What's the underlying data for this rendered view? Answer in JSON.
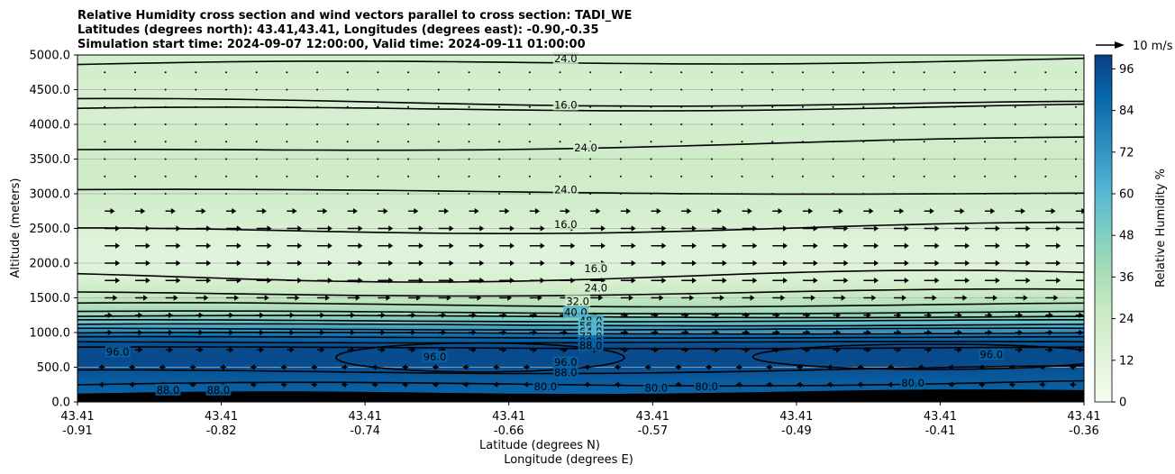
{
  "chart_data": {
    "type": "heatmap",
    "title_lines": [
      "Relative Humidity cross section and wind vectors parallel to cross section: TADI_WE",
      "Latitudes (degrees north): 43.41,43.41, Longitudes (degrees east): -0.90,-0.35",
      "Simulation start time: 2024-09-07 12:00:00, Valid time: 2024-09-11 01:00:00"
    ],
    "ylabel": "Altitude (meters)",
    "xlabel_line1": "Latitude (degrees N)",
    "xlabel_line2": "Longitude (degrees E)",
    "ylim": [
      0,
      5000
    ],
    "y_ticks": [
      0,
      500,
      1000,
      1500,
      2000,
      2500,
      3000,
      3500,
      4000,
      4500,
      5000
    ],
    "y_tick_labels": [
      "0.0",
      "500.0",
      "1000.0",
      "1500.0",
      "2000.0",
      "2500.0",
      "3000.0",
      "3500.0",
      "4000.0",
      "4500.0",
      "5000.0"
    ],
    "x_ticks": [
      {
        "lat": "43.41",
        "lon": "-0.91"
      },
      {
        "lat": "43.41",
        "lon": "-0.82"
      },
      {
        "lat": "43.41",
        "lon": "-0.74"
      },
      {
        "lat": "43.41",
        "lon": "-0.66"
      },
      {
        "lat": "43.41",
        "lon": "-0.57"
      },
      {
        "lat": "43.41",
        "lon": "-0.49"
      },
      {
        "lat": "43.41",
        "lon": "-0.41"
      },
      {
        "lat": "43.41",
        "lon": "-0.36"
      }
    ],
    "colorbar": {
      "label": "Relative Humidity %",
      "range": [
        0,
        100
      ],
      "ticks": [
        "0",
        "12",
        "24",
        "36",
        "48",
        "60",
        "72",
        "84",
        "96"
      ],
      "colors_low_to_high": [
        "#f7fcf0",
        "#e0f3db",
        "#ccebc5",
        "#a8ddb5",
        "#7bccc4",
        "#4eb3d3",
        "#2b8cbe",
        "#0868ac",
        "#084081"
      ]
    },
    "quiver_key": "10 m/s",
    "humidity_profile": [
      {
        "alt": 0,
        "rh": 88
      },
      {
        "alt": 200,
        "rh": 90
      },
      {
        "alt": 400,
        "rh": 93
      },
      {
        "alt": 600,
        "rh": 97
      },
      {
        "alt": 800,
        "rh": 96
      },
      {
        "alt": 950,
        "rh": 86
      },
      {
        "alt": 1050,
        "rh": 70
      },
      {
        "alt": 1150,
        "rh": 55
      },
      {
        "alt": 1250,
        "rh": 42
      },
      {
        "alt": 1400,
        "rh": 33
      },
      {
        "alt": 1600,
        "rh": 24
      },
      {
        "alt": 1800,
        "rh": 16
      },
      {
        "alt": 2000,
        "rh": 12
      },
      {
        "alt": 2300,
        "rh": 13
      },
      {
        "alt": 2600,
        "rh": 18
      },
      {
        "alt": 3000,
        "rh": 22
      },
      {
        "alt": 3400,
        "rh": 24
      },
      {
        "alt": 3800,
        "rh": 22
      },
      {
        "alt": 4200,
        "rh": 18
      },
      {
        "alt": 4600,
        "rh": 20
      },
      {
        "alt": 5000,
        "rh": 22
      }
    ],
    "contour_labels": [
      {
        "text": "24.0",
        "x_frac": 0.485,
        "alt": 4950
      },
      {
        "text": "16.0",
        "x_frac": 0.485,
        "alt": 4280
      },
      {
        "text": "24.0",
        "x_frac": 0.505,
        "alt": 3660
      },
      {
        "text": "24.0",
        "x_frac": 0.485,
        "alt": 3060
      },
      {
        "text": "16.0",
        "x_frac": 0.485,
        "alt": 2560
      },
      {
        "text": "16.0",
        "x_frac": 0.515,
        "alt": 1920
      },
      {
        "text": "24.0",
        "x_frac": 0.515,
        "alt": 1640
      },
      {
        "text": "32.0",
        "x_frac": 0.497,
        "alt": 1450
      },
      {
        "text": "40.0",
        "x_frac": 0.495,
        "alt": 1290
      },
      {
        "text": "48.0",
        "x_frac": 0.51,
        "alt": 1170
      },
      {
        "text": "56.0",
        "x_frac": 0.51,
        "alt": 1090
      },
      {
        "text": "64.0",
        "x_frac": 0.51,
        "alt": 1010
      },
      {
        "text": "72.0",
        "x_frac": 0.51,
        "alt": 940
      },
      {
        "text": "80.0",
        "x_frac": 0.51,
        "alt": 870
      },
      {
        "text": "88.0",
        "x_frac": 0.51,
        "alt": 810
      },
      {
        "text": "96.0",
        "x_frac": 0.485,
        "alt": 570
      },
      {
        "text": "88.0",
        "x_frac": 0.485,
        "alt": 420
      },
      {
        "text": "96.0",
        "x_frac": 0.04,
        "alt": 720
      },
      {
        "text": "96.0",
        "x_frac": 0.355,
        "alt": 650
      },
      {
        "text": "96.0",
        "x_frac": 0.908,
        "alt": 680
      },
      {
        "text": "88.0",
        "x_frac": 0.09,
        "alt": 170
      },
      {
        "text": "88.0",
        "x_frac": 0.14,
        "alt": 170
      },
      {
        "text": "80.0",
        "x_frac": 0.465,
        "alt": 220
      },
      {
        "text": "80.0",
        "x_frac": 0.575,
        "alt": 200
      },
      {
        "text": "80.0",
        "x_frac": 0.625,
        "alt": 220
      },
      {
        "text": "80.0",
        "x_frac": 0.83,
        "alt": 270
      }
    ]
  }
}
